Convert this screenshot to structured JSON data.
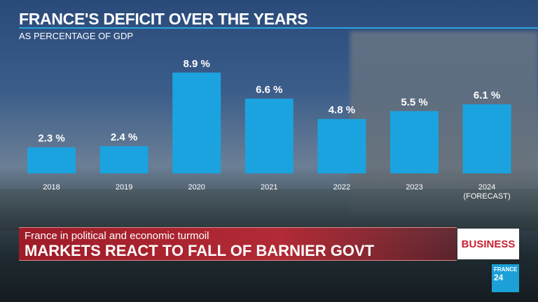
{
  "chart_data": {
    "type": "bar",
    "title": "FRANCE'S DEFICIT OVER THE YEARS",
    "subtitle": "AS PERCENTAGE OF GDP",
    "categories": [
      "2018",
      "2019",
      "2020",
      "2021",
      "2022",
      "2023",
      "2024"
    ],
    "category_notes": [
      "",
      "",
      "",
      "",
      "",
      "",
      "(FORECAST)"
    ],
    "values": [
      2.3,
      2.4,
      8.9,
      6.6,
      4.8,
      5.5,
      6.1
    ],
    "value_labels": [
      "2.3 %",
      "2.4 %",
      "8.9 %",
      "6.6 %",
      "4.8 %",
      "5.5 %",
      "6.1 %"
    ],
    "xlabel": "",
    "ylabel": "",
    "ylim": [
      0,
      8.9
    ],
    "grid": false,
    "bar_color": "#1ba3e0"
  },
  "lower_third": {
    "kicker": "France in political and economic turmoil",
    "headline": "MARKETS REACT TO FALL OF BARNIER GOVT"
  },
  "section_badge": "BUSINESS",
  "channel_logo": {
    "line1": "FRANCE",
    "line2": "24"
  }
}
